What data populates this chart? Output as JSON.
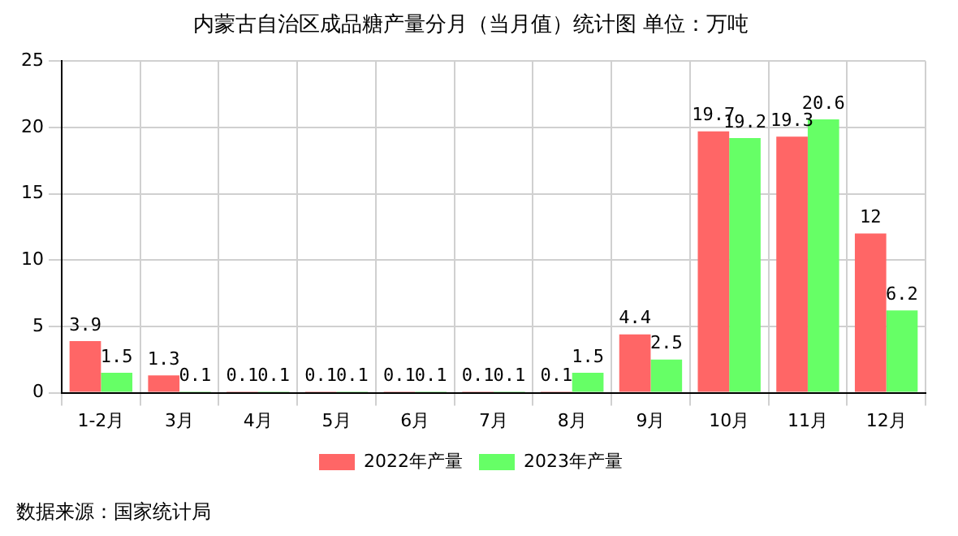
{
  "chart_data": {
    "type": "bar",
    "title": "内蒙古自治区成品糖产量分月（当月值）统计图 单位：万吨",
    "categories": [
      "1-2月",
      "3月",
      "4月",
      "5月",
      "6月",
      "7月",
      "8月",
      "9月",
      "10月",
      "11月",
      "12月"
    ],
    "series": [
      {
        "name": "2022年产量",
        "color": "#ff6666",
        "values": [
          3.9,
          1.3,
          0.1,
          0.1,
          0.1,
          0.1,
          0.1,
          4.4,
          19.7,
          19.3,
          12
        ]
      },
      {
        "name": "2023年产量",
        "color": "#66ff66",
        "values": [
          1.5,
          0.1,
          0.1,
          0.1,
          0.1,
          0.1,
          1.5,
          2.5,
          19.2,
          20.6,
          6.2
        ]
      }
    ],
    "ylim": [
      0,
      25
    ],
    "yticks": [
      0,
      5,
      10,
      15,
      20,
      25
    ],
    "grid": true,
    "legend": "bottom",
    "data_labels": true,
    "annotations": [
      "数据来源：国家统计局"
    ]
  }
}
